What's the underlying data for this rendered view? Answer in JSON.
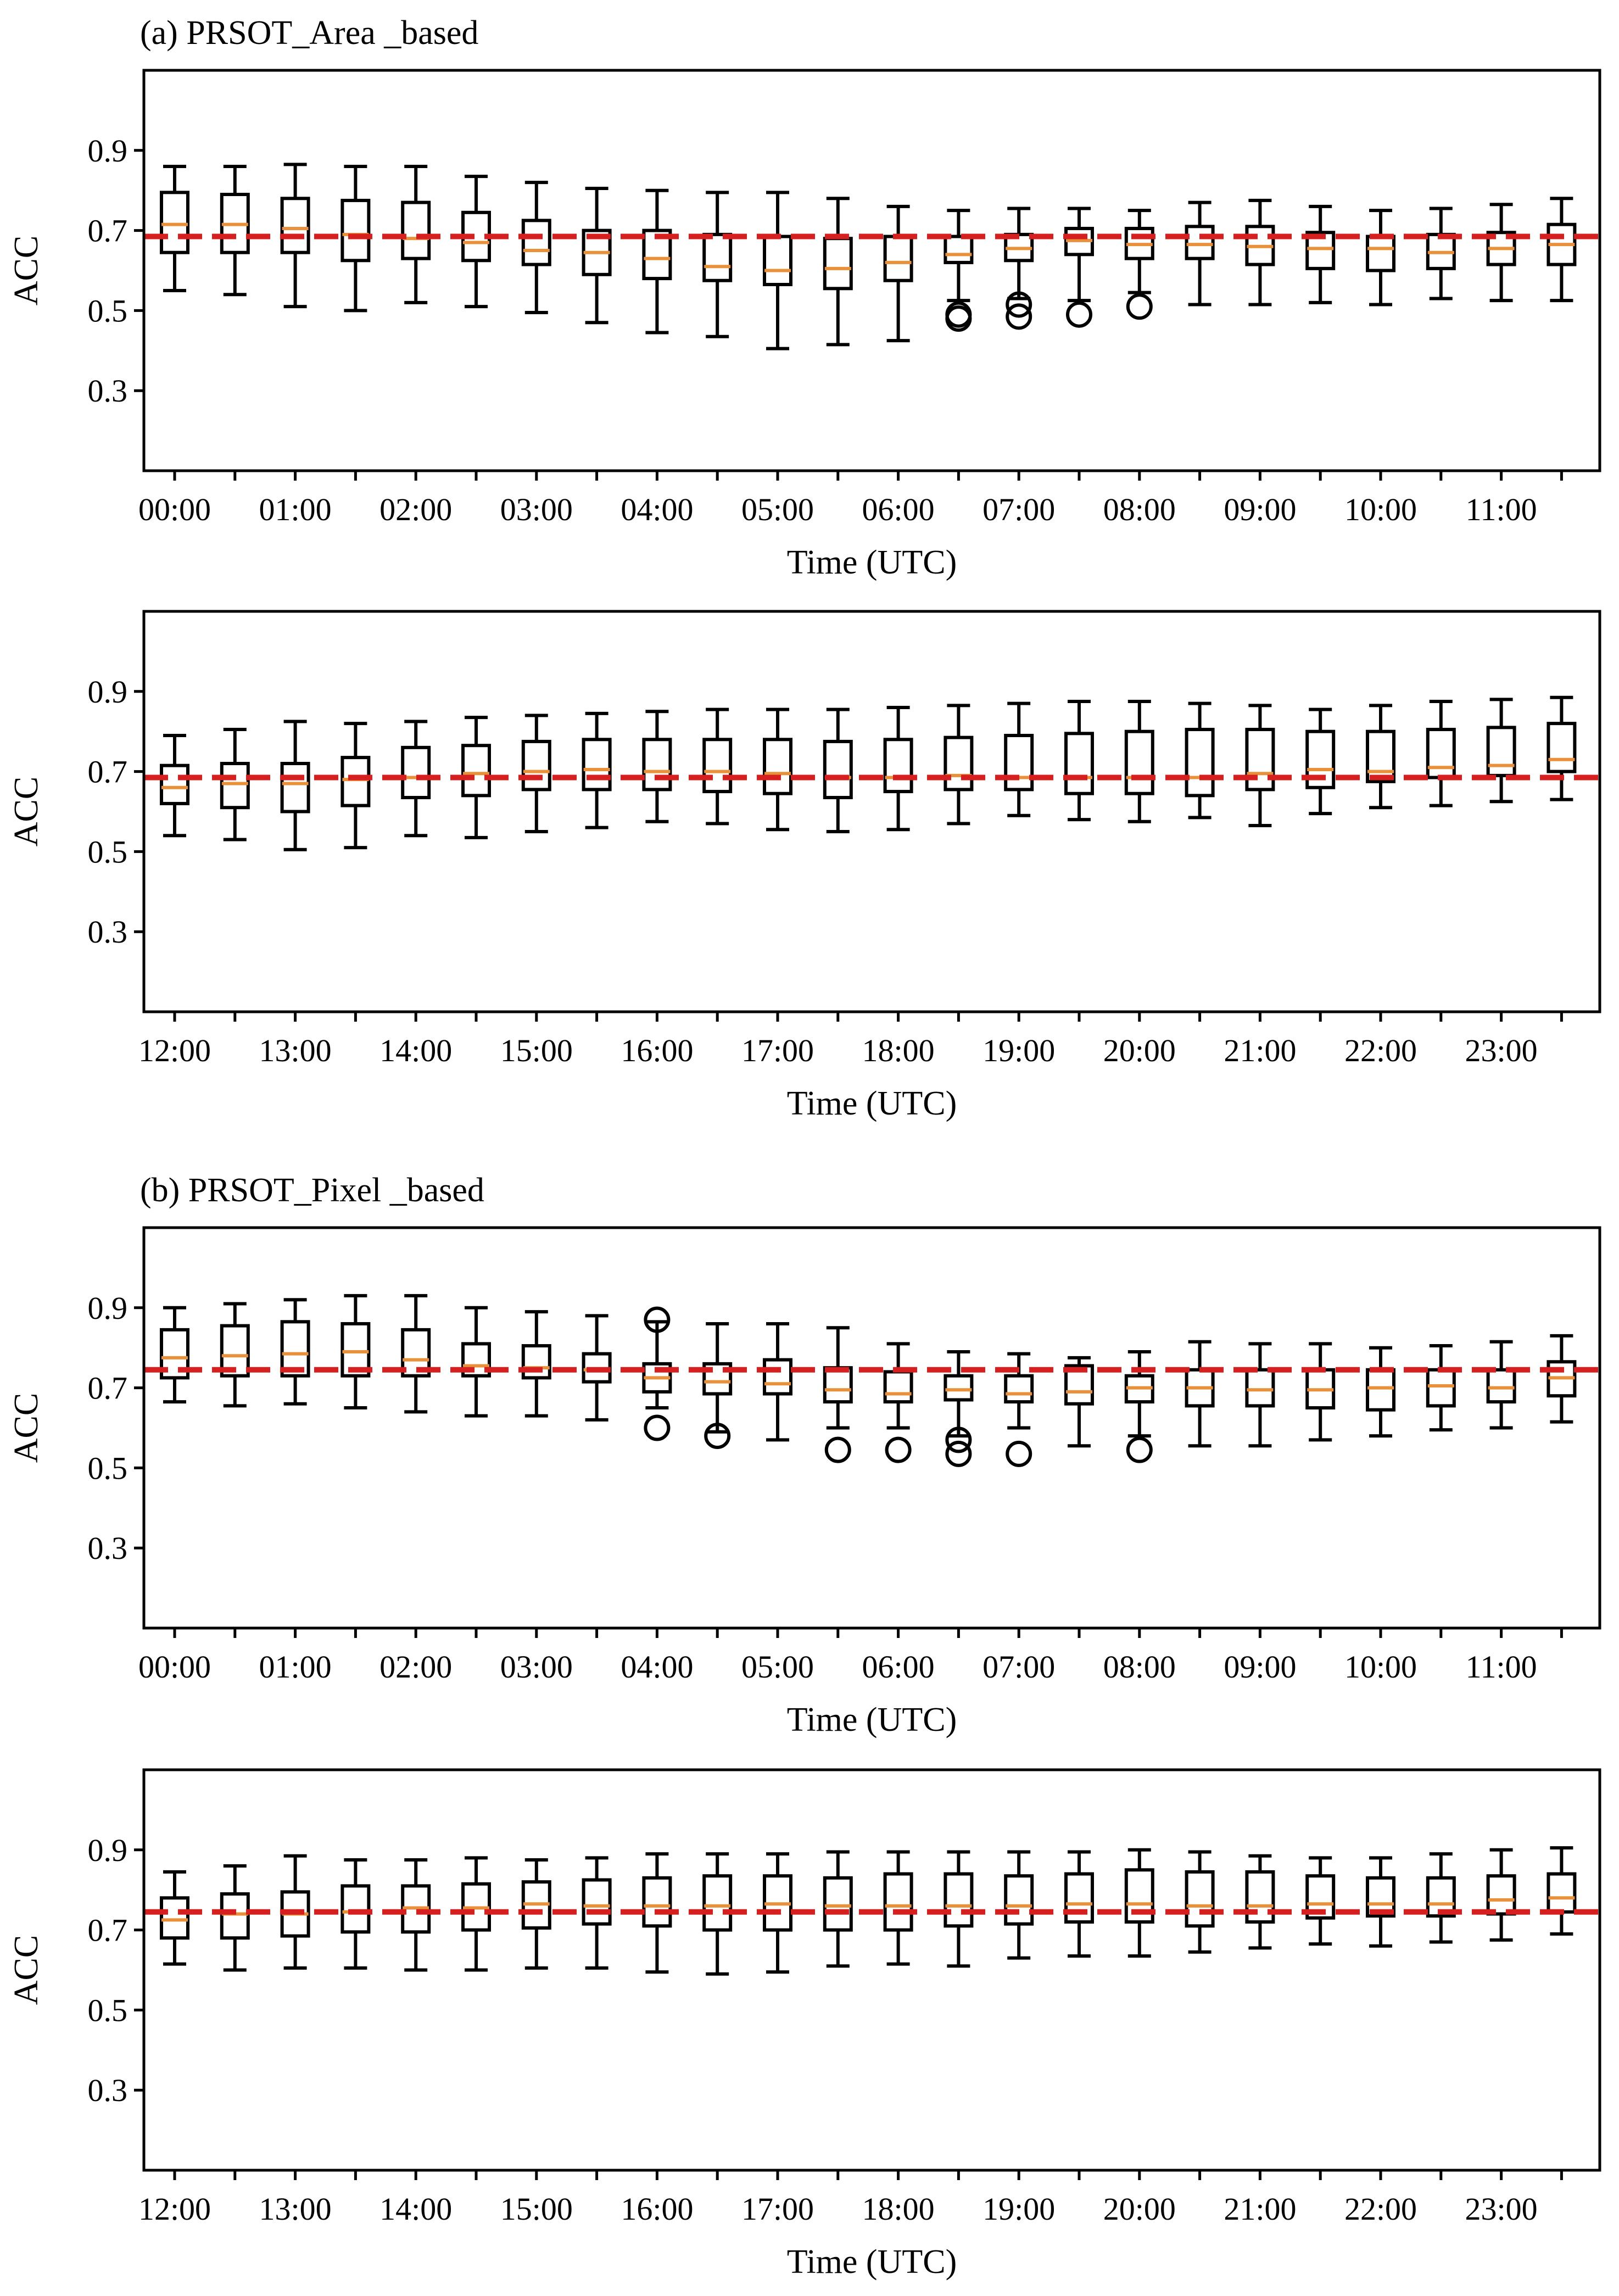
{
  "colors": {
    "box": "#000000",
    "median": "#e8913a",
    "reference": "#d62020",
    "axes": "#000000"
  },
  "chart_data": [
    {
      "type": "boxplot",
      "panel_label": "(a) PRSOT_Area _based",
      "xlabel": "Time (UTC)",
      "ylabel": "ACC",
      "ylim": [
        0.1,
        1.1
      ],
      "yticks": [
        "0.3",
        "0.5",
        "0.7",
        "0.9"
      ],
      "xticks": [
        "00:00",
        "01:00",
        "02:00",
        "03:00",
        "04:00",
        "05:00",
        "06:00",
        "07:00",
        "08:00",
        "09:00",
        "10:00",
        "11:00"
      ],
      "reference_line": 0.685,
      "boxes": [
        {
          "whislo": 0.55,
          "q1": 0.645,
          "med": 0.715,
          "q3": 0.795,
          "whishi": 0.86,
          "fliers": []
        },
        {
          "whislo": 0.54,
          "q1": 0.645,
          "med": 0.715,
          "q3": 0.79,
          "whishi": 0.86,
          "fliers": []
        },
        {
          "whislo": 0.51,
          "q1": 0.645,
          "med": 0.705,
          "q3": 0.78,
          "whishi": 0.865,
          "fliers": []
        },
        {
          "whislo": 0.5,
          "q1": 0.625,
          "med": 0.69,
          "q3": 0.775,
          "whishi": 0.86,
          "fliers": []
        },
        {
          "whislo": 0.52,
          "q1": 0.63,
          "med": 0.68,
          "q3": 0.77,
          "whishi": 0.86,
          "fliers": []
        },
        {
          "whislo": 0.51,
          "q1": 0.625,
          "med": 0.67,
          "q3": 0.745,
          "whishi": 0.835,
          "fliers": []
        },
        {
          "whislo": 0.495,
          "q1": 0.615,
          "med": 0.65,
          "q3": 0.725,
          "whishi": 0.82,
          "fliers": []
        },
        {
          "whislo": 0.47,
          "q1": 0.59,
          "med": 0.645,
          "q3": 0.7,
          "whishi": 0.805,
          "fliers": []
        },
        {
          "whislo": 0.445,
          "q1": 0.58,
          "med": 0.63,
          "q3": 0.7,
          "whishi": 0.8,
          "fliers": []
        },
        {
          "whislo": 0.435,
          "q1": 0.575,
          "med": 0.61,
          "q3": 0.69,
          "whishi": 0.795,
          "fliers": []
        },
        {
          "whislo": 0.405,
          "q1": 0.565,
          "med": 0.6,
          "q3": 0.685,
          "whishi": 0.795,
          "fliers": []
        },
        {
          "whislo": 0.415,
          "q1": 0.555,
          "med": 0.605,
          "q3": 0.68,
          "whishi": 0.78,
          "fliers": []
        },
        {
          "whislo": 0.425,
          "q1": 0.575,
          "med": 0.62,
          "q3": 0.685,
          "whishi": 0.76,
          "fliers": []
        },
        {
          "whislo": 0.525,
          "q1": 0.62,
          "med": 0.64,
          "q3": 0.685,
          "whishi": 0.75,
          "fliers": [
            0.48,
            0.49
          ]
        },
        {
          "whislo": 0.53,
          "q1": 0.625,
          "med": 0.655,
          "q3": 0.69,
          "whishi": 0.755,
          "fliers": [
            0.485,
            0.515
          ]
        },
        {
          "whislo": 0.525,
          "q1": 0.64,
          "med": 0.675,
          "q3": 0.705,
          "whishi": 0.755,
          "fliers": [
            0.49
          ]
        },
        {
          "whislo": 0.545,
          "q1": 0.63,
          "med": 0.665,
          "q3": 0.705,
          "whishi": 0.75,
          "fliers": [
            0.51
          ]
        },
        {
          "whislo": 0.515,
          "q1": 0.63,
          "med": 0.665,
          "q3": 0.71,
          "whishi": 0.77,
          "fliers": []
        },
        {
          "whislo": 0.515,
          "q1": 0.615,
          "med": 0.66,
          "q3": 0.71,
          "whishi": 0.775,
          "fliers": []
        },
        {
          "whislo": 0.52,
          "q1": 0.605,
          "med": 0.655,
          "q3": 0.695,
          "whishi": 0.76,
          "fliers": []
        },
        {
          "whislo": 0.515,
          "q1": 0.6,
          "med": 0.655,
          "q3": 0.685,
          "whishi": 0.75,
          "fliers": []
        },
        {
          "whislo": 0.53,
          "q1": 0.605,
          "med": 0.645,
          "q3": 0.69,
          "whishi": 0.755,
          "fliers": []
        },
        {
          "whislo": 0.525,
          "q1": 0.615,
          "med": 0.655,
          "q3": 0.695,
          "whishi": 0.765,
          "fliers": []
        },
        {
          "whislo": 0.525,
          "q1": 0.615,
          "med": 0.665,
          "q3": 0.715,
          "whishi": 0.78,
          "fliers": []
        }
      ]
    },
    {
      "type": "boxplot",
      "panel_label": "",
      "xlabel": "Time (UTC)",
      "ylabel": "ACC",
      "ylim": [
        0.1,
        1.1
      ],
      "yticks": [
        "0.3",
        "0.5",
        "0.7",
        "0.9"
      ],
      "xticks": [
        "12:00",
        "13:00",
        "14:00",
        "15:00",
        "16:00",
        "17:00",
        "18:00",
        "19:00",
        "20:00",
        "21:00",
        "22:00",
        "23:00"
      ],
      "reference_line": 0.685,
      "boxes": [
        {
          "whislo": 0.54,
          "q1": 0.62,
          "med": 0.66,
          "q3": 0.715,
          "whishi": 0.79,
          "fliers": []
        },
        {
          "whislo": 0.53,
          "q1": 0.61,
          "med": 0.67,
          "q3": 0.72,
          "whishi": 0.805,
          "fliers": []
        },
        {
          "whislo": 0.505,
          "q1": 0.6,
          "med": 0.67,
          "q3": 0.72,
          "whishi": 0.825,
          "fliers": []
        },
        {
          "whislo": 0.51,
          "q1": 0.615,
          "med": 0.68,
          "q3": 0.735,
          "whishi": 0.82,
          "fliers": []
        },
        {
          "whislo": 0.54,
          "q1": 0.635,
          "med": 0.685,
          "q3": 0.76,
          "whishi": 0.825,
          "fliers": []
        },
        {
          "whislo": 0.535,
          "q1": 0.64,
          "med": 0.695,
          "q3": 0.765,
          "whishi": 0.835,
          "fliers": []
        },
        {
          "whislo": 0.55,
          "q1": 0.655,
          "med": 0.7,
          "q3": 0.775,
          "whishi": 0.84,
          "fliers": []
        },
        {
          "whislo": 0.56,
          "q1": 0.655,
          "med": 0.705,
          "q3": 0.78,
          "whishi": 0.845,
          "fliers": []
        },
        {
          "whislo": 0.575,
          "q1": 0.655,
          "med": 0.7,
          "q3": 0.78,
          "whishi": 0.85,
          "fliers": []
        },
        {
          "whislo": 0.57,
          "q1": 0.65,
          "med": 0.7,
          "q3": 0.78,
          "whishi": 0.855,
          "fliers": []
        },
        {
          "whislo": 0.555,
          "q1": 0.645,
          "med": 0.695,
          "q3": 0.78,
          "whishi": 0.855,
          "fliers": []
        },
        {
          "whislo": 0.55,
          "q1": 0.635,
          "med": 0.685,
          "q3": 0.775,
          "whishi": 0.855,
          "fliers": []
        },
        {
          "whislo": 0.555,
          "q1": 0.65,
          "med": 0.685,
          "q3": 0.78,
          "whishi": 0.86,
          "fliers": []
        },
        {
          "whislo": 0.57,
          "q1": 0.655,
          "med": 0.69,
          "q3": 0.785,
          "whishi": 0.865,
          "fliers": []
        },
        {
          "whislo": 0.59,
          "q1": 0.655,
          "med": 0.685,
          "q3": 0.79,
          "whishi": 0.87,
          "fliers": []
        },
        {
          "whislo": 0.58,
          "q1": 0.645,
          "med": 0.685,
          "q3": 0.795,
          "whishi": 0.875,
          "fliers": []
        },
        {
          "whislo": 0.575,
          "q1": 0.645,
          "med": 0.685,
          "q3": 0.8,
          "whishi": 0.875,
          "fliers": []
        },
        {
          "whislo": 0.585,
          "q1": 0.64,
          "med": 0.685,
          "q3": 0.805,
          "whishi": 0.87,
          "fliers": []
        },
        {
          "whislo": 0.565,
          "q1": 0.655,
          "med": 0.695,
          "q3": 0.805,
          "whishi": 0.865,
          "fliers": []
        },
        {
          "whislo": 0.595,
          "q1": 0.66,
          "med": 0.705,
          "q3": 0.8,
          "whishi": 0.855,
          "fliers": []
        },
        {
          "whislo": 0.61,
          "q1": 0.675,
          "med": 0.7,
          "q3": 0.8,
          "whishi": 0.865,
          "fliers": []
        },
        {
          "whislo": 0.615,
          "q1": 0.685,
          "med": 0.71,
          "q3": 0.805,
          "whishi": 0.875,
          "fliers": []
        },
        {
          "whislo": 0.625,
          "q1": 0.69,
          "med": 0.715,
          "q3": 0.81,
          "whishi": 0.88,
          "fliers": []
        },
        {
          "whislo": 0.63,
          "q1": 0.7,
          "med": 0.73,
          "q3": 0.82,
          "whishi": 0.885,
          "fliers": []
        }
      ]
    },
    {
      "type": "boxplot",
      "panel_label": "(b) PRSOT_Pixel _based",
      "xlabel": "Time (UTC)",
      "ylabel": "ACC",
      "ylim": [
        0.1,
        1.1
      ],
      "yticks": [
        "0.3",
        "0.5",
        "0.7",
        "0.9"
      ],
      "xticks": [
        "00:00",
        "01:00",
        "02:00",
        "03:00",
        "04:00",
        "05:00",
        "06:00",
        "07:00",
        "08:00",
        "09:00",
        "10:00",
        "11:00"
      ],
      "reference_line": 0.745,
      "boxes": [
        {
          "whislo": 0.665,
          "q1": 0.725,
          "med": 0.775,
          "q3": 0.845,
          "whishi": 0.9,
          "fliers": []
        },
        {
          "whislo": 0.655,
          "q1": 0.73,
          "med": 0.78,
          "q3": 0.855,
          "whishi": 0.91,
          "fliers": []
        },
        {
          "whislo": 0.66,
          "q1": 0.73,
          "med": 0.785,
          "q3": 0.865,
          "whishi": 0.92,
          "fliers": []
        },
        {
          "whislo": 0.65,
          "q1": 0.73,
          "med": 0.79,
          "q3": 0.86,
          "whishi": 0.93,
          "fliers": []
        },
        {
          "whislo": 0.64,
          "q1": 0.73,
          "med": 0.77,
          "q3": 0.845,
          "whishi": 0.93,
          "fliers": []
        },
        {
          "whislo": 0.63,
          "q1": 0.73,
          "med": 0.755,
          "q3": 0.81,
          "whishi": 0.9,
          "fliers": []
        },
        {
          "whislo": 0.63,
          "q1": 0.725,
          "med": 0.75,
          "q3": 0.805,
          "whishi": 0.89,
          "fliers": []
        },
        {
          "whislo": 0.62,
          "q1": 0.715,
          "med": 0.745,
          "q3": 0.785,
          "whishi": 0.88,
          "fliers": []
        },
        {
          "whislo": 0.65,
          "q1": 0.69,
          "med": 0.725,
          "q3": 0.76,
          "whishi": 0.865,
          "fliers": [
            0.6,
            0.87
          ]
        },
        {
          "whislo": 0.59,
          "q1": 0.685,
          "med": 0.715,
          "q3": 0.76,
          "whishi": 0.86,
          "fliers": [
            0.58
          ]
        },
        {
          "whislo": 0.57,
          "q1": 0.685,
          "med": 0.71,
          "q3": 0.77,
          "whishi": 0.86,
          "fliers": []
        },
        {
          "whislo": 0.6,
          "q1": 0.665,
          "med": 0.695,
          "q3": 0.75,
          "whishi": 0.85,
          "fliers": [
            0.545
          ]
        },
        {
          "whislo": 0.6,
          "q1": 0.665,
          "med": 0.685,
          "q3": 0.74,
          "whishi": 0.81,
          "fliers": [
            0.545
          ]
        },
        {
          "whislo": 0.58,
          "q1": 0.67,
          "med": 0.695,
          "q3": 0.73,
          "whishi": 0.79,
          "fliers": [
            0.535,
            0.57
          ]
        },
        {
          "whislo": 0.6,
          "q1": 0.665,
          "med": 0.685,
          "q3": 0.73,
          "whishi": 0.785,
          "fliers": [
            0.535
          ]
        },
        {
          "whislo": 0.555,
          "q1": 0.66,
          "med": 0.69,
          "q3": 0.755,
          "whishi": 0.775,
          "fliers": []
        },
        {
          "whislo": 0.58,
          "q1": 0.665,
          "med": 0.7,
          "q3": 0.73,
          "whishi": 0.79,
          "fliers": [
            0.545
          ]
        },
        {
          "whislo": 0.555,
          "q1": 0.655,
          "med": 0.7,
          "q3": 0.745,
          "whishi": 0.815,
          "fliers": []
        },
        {
          "whislo": 0.555,
          "q1": 0.655,
          "med": 0.695,
          "q3": 0.745,
          "whishi": 0.81,
          "fliers": []
        },
        {
          "whislo": 0.57,
          "q1": 0.65,
          "med": 0.695,
          "q3": 0.745,
          "whishi": 0.81,
          "fliers": []
        },
        {
          "whislo": 0.58,
          "q1": 0.645,
          "med": 0.7,
          "q3": 0.745,
          "whishi": 0.8,
          "fliers": []
        },
        {
          "whislo": 0.595,
          "q1": 0.655,
          "med": 0.705,
          "q3": 0.745,
          "whishi": 0.805,
          "fliers": []
        },
        {
          "whislo": 0.6,
          "q1": 0.665,
          "med": 0.7,
          "q3": 0.745,
          "whishi": 0.815,
          "fliers": []
        },
        {
          "whislo": 0.615,
          "q1": 0.68,
          "med": 0.725,
          "q3": 0.765,
          "whishi": 0.83,
          "fliers": []
        }
      ]
    },
    {
      "type": "boxplot",
      "panel_label": "",
      "xlabel": "Time (UTC)",
      "ylabel": "ACC",
      "ylim": [
        0.1,
        1.1
      ],
      "yticks": [
        "0.3",
        "0.5",
        "0.7",
        "0.9"
      ],
      "xticks": [
        "12:00",
        "13:00",
        "14:00",
        "15:00",
        "16:00",
        "17:00",
        "18:00",
        "19:00",
        "20:00",
        "21:00",
        "22:00",
        "23:00"
      ],
      "reference_line": 0.745,
      "boxes": [
        {
          "whislo": 0.615,
          "q1": 0.68,
          "med": 0.725,
          "q3": 0.78,
          "whishi": 0.845,
          "fliers": []
        },
        {
          "whislo": 0.6,
          "q1": 0.68,
          "med": 0.74,
          "q3": 0.79,
          "whishi": 0.86,
          "fliers": []
        },
        {
          "whislo": 0.605,
          "q1": 0.685,
          "med": 0.74,
          "q3": 0.795,
          "whishi": 0.885,
          "fliers": []
        },
        {
          "whislo": 0.605,
          "q1": 0.695,
          "med": 0.745,
          "q3": 0.81,
          "whishi": 0.875,
          "fliers": []
        },
        {
          "whislo": 0.6,
          "q1": 0.695,
          "med": 0.755,
          "q3": 0.81,
          "whishi": 0.875,
          "fliers": []
        },
        {
          "whislo": 0.6,
          "q1": 0.7,
          "med": 0.755,
          "q3": 0.815,
          "whishi": 0.88,
          "fliers": []
        },
        {
          "whislo": 0.605,
          "q1": 0.705,
          "med": 0.765,
          "q3": 0.82,
          "whishi": 0.875,
          "fliers": []
        },
        {
          "whislo": 0.605,
          "q1": 0.715,
          "med": 0.76,
          "q3": 0.825,
          "whishi": 0.88,
          "fliers": []
        },
        {
          "whislo": 0.595,
          "q1": 0.71,
          "med": 0.76,
          "q3": 0.83,
          "whishi": 0.89,
          "fliers": []
        },
        {
          "whislo": 0.59,
          "q1": 0.7,
          "med": 0.76,
          "q3": 0.835,
          "whishi": 0.89,
          "fliers": []
        },
        {
          "whislo": 0.595,
          "q1": 0.7,
          "med": 0.765,
          "q3": 0.835,
          "whishi": 0.89,
          "fliers": []
        },
        {
          "whislo": 0.61,
          "q1": 0.7,
          "med": 0.76,
          "q3": 0.83,
          "whishi": 0.895,
          "fliers": []
        },
        {
          "whislo": 0.615,
          "q1": 0.7,
          "med": 0.76,
          "q3": 0.84,
          "whishi": 0.895,
          "fliers": []
        },
        {
          "whislo": 0.61,
          "q1": 0.71,
          "med": 0.76,
          "q3": 0.84,
          "whishi": 0.895,
          "fliers": []
        },
        {
          "whislo": 0.63,
          "q1": 0.715,
          "med": 0.76,
          "q3": 0.835,
          "whishi": 0.895,
          "fliers": []
        },
        {
          "whislo": 0.635,
          "q1": 0.72,
          "med": 0.765,
          "q3": 0.84,
          "whishi": 0.895,
          "fliers": []
        },
        {
          "whislo": 0.635,
          "q1": 0.72,
          "med": 0.765,
          "q3": 0.85,
          "whishi": 0.9,
          "fliers": []
        },
        {
          "whislo": 0.645,
          "q1": 0.71,
          "med": 0.76,
          "q3": 0.845,
          "whishi": 0.895,
          "fliers": []
        },
        {
          "whislo": 0.655,
          "q1": 0.72,
          "med": 0.76,
          "q3": 0.845,
          "whishi": 0.885,
          "fliers": []
        },
        {
          "whislo": 0.665,
          "q1": 0.73,
          "med": 0.765,
          "q3": 0.835,
          "whishi": 0.88,
          "fliers": []
        },
        {
          "whislo": 0.66,
          "q1": 0.735,
          "med": 0.765,
          "q3": 0.83,
          "whishi": 0.88,
          "fliers": []
        },
        {
          "whislo": 0.67,
          "q1": 0.735,
          "med": 0.765,
          "q3": 0.83,
          "whishi": 0.89,
          "fliers": []
        },
        {
          "whislo": 0.675,
          "q1": 0.74,
          "med": 0.775,
          "q3": 0.835,
          "whishi": 0.9,
          "fliers": []
        },
        {
          "whislo": 0.69,
          "q1": 0.745,
          "med": 0.78,
          "q3": 0.84,
          "whishi": 0.905,
          "fliers": []
        }
      ]
    }
  ]
}
